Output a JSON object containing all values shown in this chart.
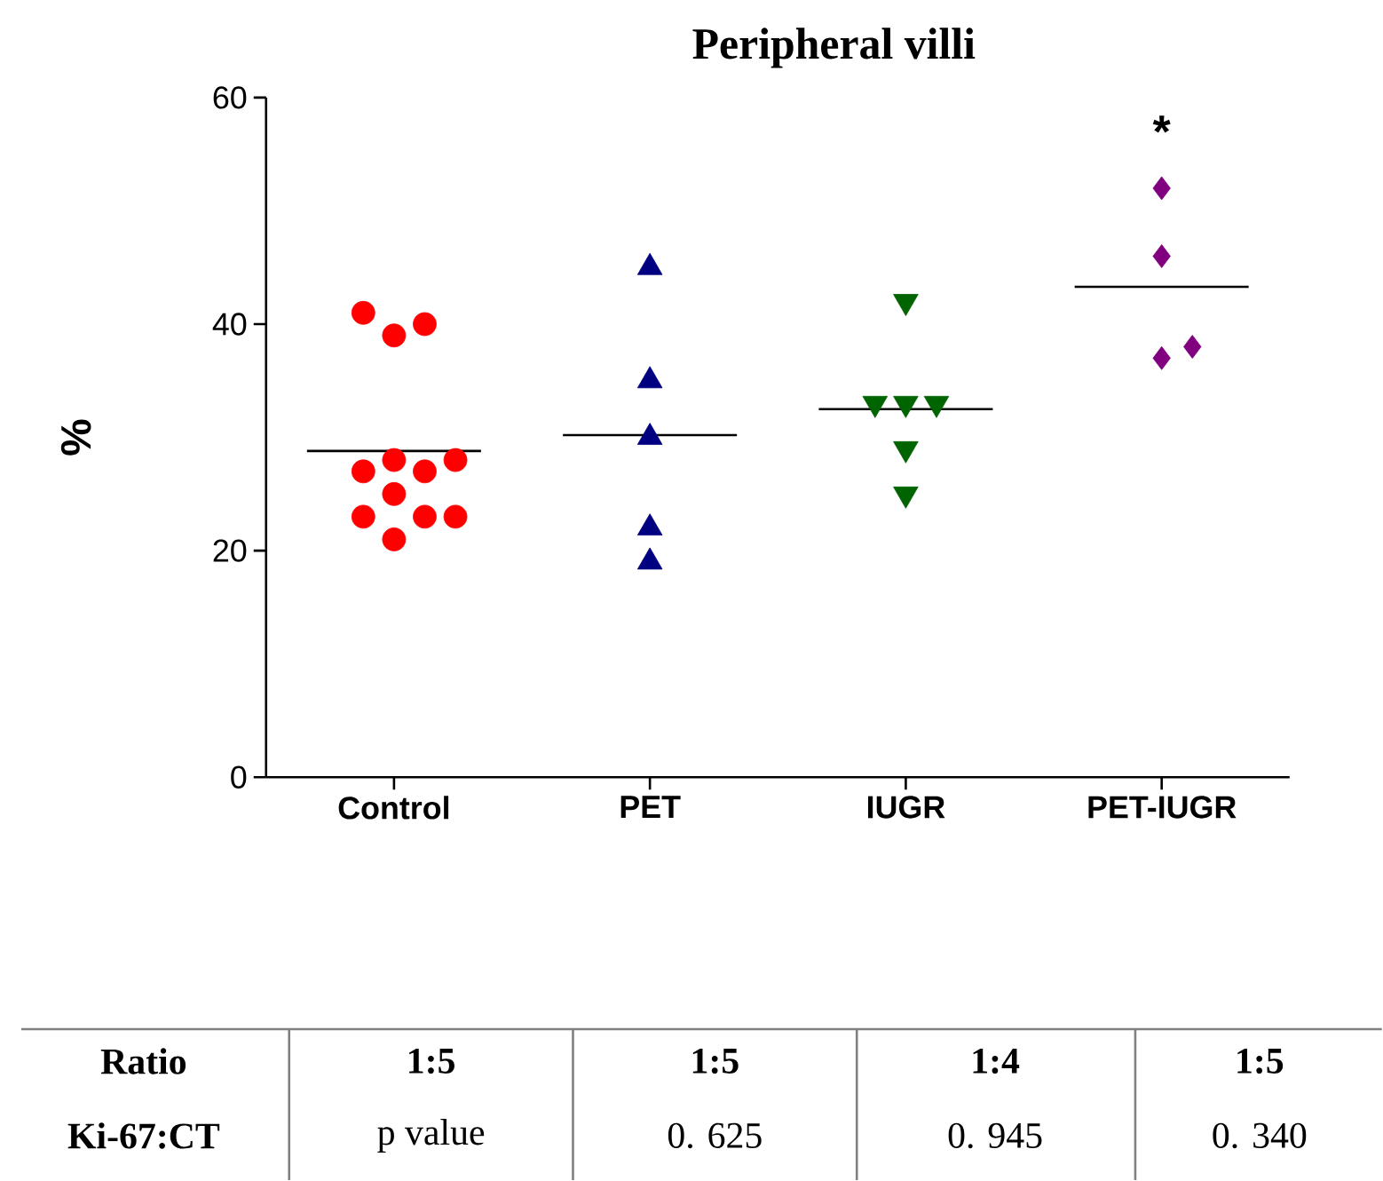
{
  "chart_data": {
    "type": "scatter",
    "title": "Peripheral villi",
    "ylabel": "%",
    "categories": [
      "Control",
      "PET",
      "IUGR",
      "PET-IUGR"
    ],
    "ylim": [
      0,
      60
    ],
    "yticks": [
      0,
      20,
      40,
      60
    ],
    "grid": false,
    "series": [
      {
        "color": "#ff0000",
        "marker": "circle",
        "x": [
          "Control",
          "Control",
          "Control",
          "Control",
          "Control",
          "Control",
          "Control",
          "Control",
          "Control",
          "Control",
          "Control",
          "Control"
        ],
        "values": [
          40,
          39,
          41,
          28,
          28,
          27,
          27,
          25,
          23,
          23,
          23,
          21
        ]
      },
      {
        "color": "#000080",
        "marker": "triangle",
        "x": [
          "PET",
          "PET",
          "PET",
          "PET",
          "PET"
        ],
        "values": [
          45,
          35,
          30,
          22,
          19
        ]
      },
      {
        "color": "#006400",
        "marker": "triangle down",
        "x": [
          "IUGR",
          "IUGR",
          "IUGR",
          "IUGR",
          "IUGR",
          "IUGR"
        ],
        "values": [
          42,
          33,
          33,
          33,
          29,
          25
        ]
      },
      {
        "color": "#800080",
        "marker": "diamond",
        "x": [
          "PET-IUGR",
          "PET-IUGR",
          "PET-IUGR",
          "PET-IUGR"
        ],
        "values": [
          52,
          46,
          37,
          38
        ]
      },
      {
        "type": "box",
        "color": "#000000",
        "boxes": [
          {
            "low": 28.8,
            "q1": 28.8,
            "median": 28.8,
            "q3": 28.8,
            "high": 28.8
          },
          {
            "low": 30.2,
            "q1": 30.2,
            "median": 30.2,
            "q3": 30.2,
            "high": 30.2
          },
          {
            "low": 32.5,
            "q1": 32.5,
            "median": 32.5,
            "q3": 32.5,
            "high": 32.5
          },
          {
            "low": 43.3,
            "q1": 43.3,
            "median": 43.3,
            "q3": 43.3,
            "high": 43.3
          }
        ]
      }
    ],
    "annotations": [
      "*",
      "Ratio",
      "1:5",
      "1:5",
      "1:4",
      "1:5",
      "Ki-67:CT",
      "p value",
      "0. 625",
      "0. 945",
      "0. 340"
    ]
  }
}
